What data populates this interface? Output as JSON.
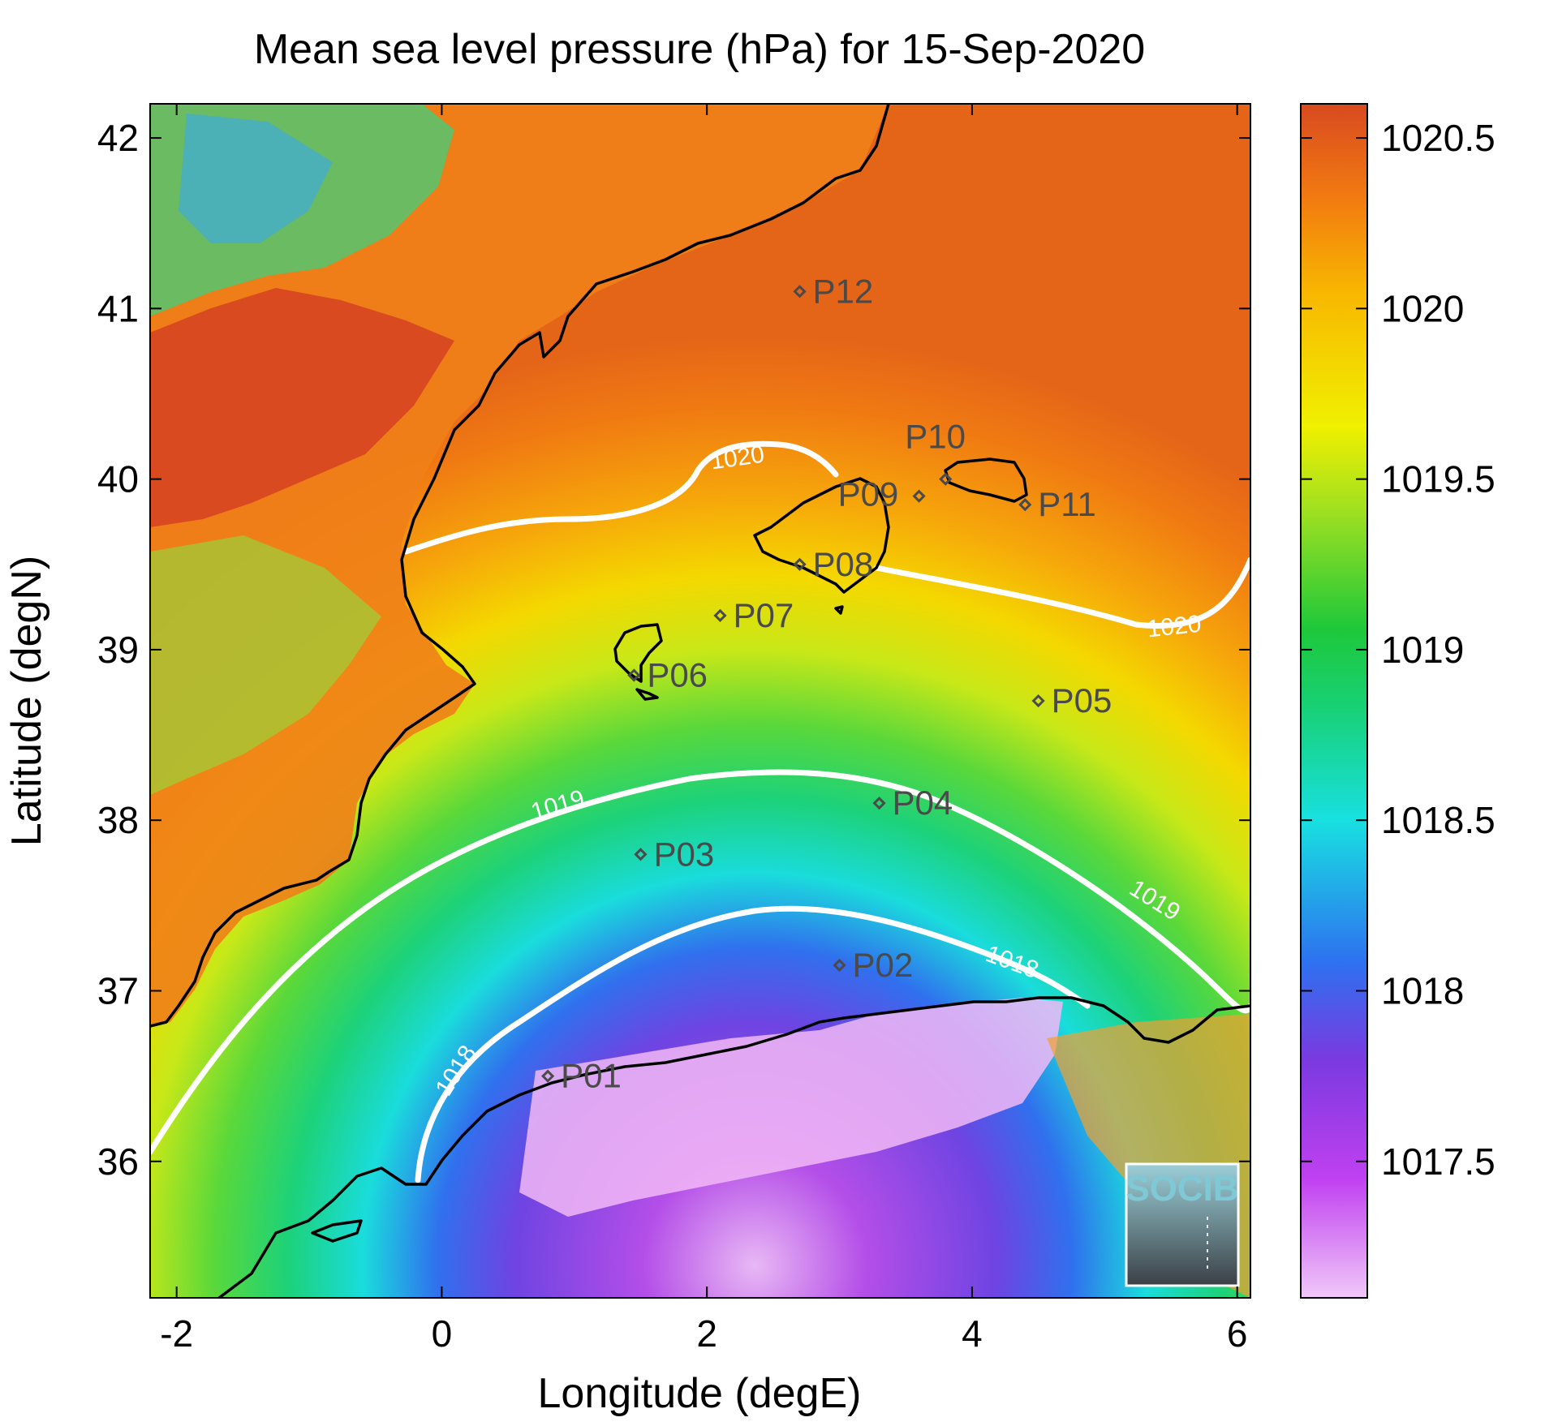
{
  "title": "Mean sea level pressure (hPa) for 15-Sep-2020",
  "xlabel": "Longitude (degE)",
  "ylabel": "Latitude (degN)",
  "x_ticks": [
    "-2",
    "0",
    "2",
    "4",
    "6"
  ],
  "y_ticks": [
    "36",
    "37",
    "38",
    "39",
    "40",
    "41",
    "42"
  ],
  "colorbar_ticks": [
    "1017.5",
    "1018",
    "1018.5",
    "1019",
    "1019.5",
    "1020",
    "1020.5"
  ],
  "logo": "SOCIB",
  "chart_data": {
    "type": "heatmap",
    "variable": "Mean sea level pressure",
    "units": "hPa",
    "date": "15-Sep-2020",
    "xlim": [
      -2.2,
      6.1
    ],
    "ylim": [
      35.2,
      42.2
    ],
    "clim": [
      1017.1,
      1020.6
    ],
    "colormap": [
      "#f0c8f8",
      "#c040f0",
      "#7a3ae0",
      "#2e70f0",
      "#18e0e0",
      "#18d070",
      "#1ec83a",
      "#a0e020",
      "#f0f000",
      "#f8b800",
      "#f27b10",
      "#d84a20"
    ],
    "contour_levels": [
      {
        "value": 1018,
        "label": "1018"
      },
      {
        "value": 1019,
        "label": "1019"
      },
      {
        "value": 1020,
        "label": "1020"
      }
    ],
    "points": [
      {
        "name": "P01",
        "lon": 0.8,
        "lat": 36.5
      },
      {
        "name": "P02",
        "lon": 3.0,
        "lat": 37.15
      },
      {
        "name": "P03",
        "lon": 1.5,
        "lat": 37.8
      },
      {
        "name": "P04",
        "lon": 3.3,
        "lat": 38.1
      },
      {
        "name": "P05",
        "lon": 4.5,
        "lat": 38.7
      },
      {
        "name": "P06",
        "lon": 1.45,
        "lat": 38.85
      },
      {
        "name": "P07",
        "lon": 2.1,
        "lat": 39.2
      },
      {
        "name": "P08",
        "lon": 2.7,
        "lat": 39.5
      },
      {
        "name": "P09",
        "lon": 3.6,
        "lat": 39.9
      },
      {
        "name": "P10",
        "lon": 3.8,
        "lat": 40.0
      },
      {
        "name": "P11",
        "lon": 4.4,
        "lat": 39.85
      },
      {
        "name": "P12",
        "lon": 2.7,
        "lat": 41.1
      }
    ]
  }
}
